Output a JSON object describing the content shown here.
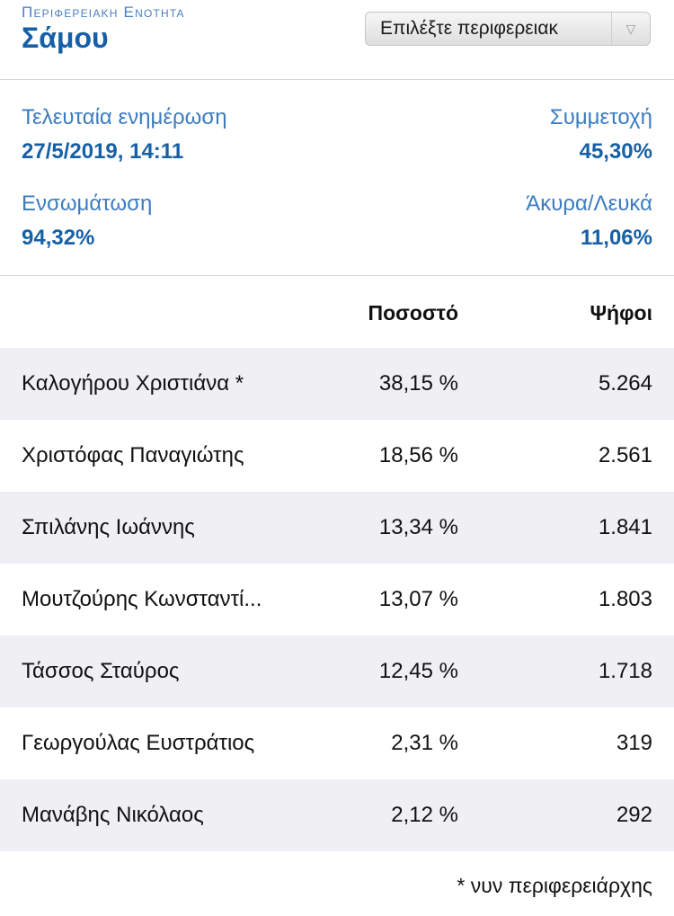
{
  "header": {
    "kicker": "Περιφερειακη Ενοτητα",
    "title": "Σάμου",
    "select_label": "Επιλέξτε περιφερειακ"
  },
  "stats": {
    "last_update_label": "Τελευταία ενημέρωση",
    "last_update_value": "27/5/2019, 14:11",
    "turnout_label": "Συμμετοχή",
    "turnout_value": "45,30%",
    "integration_label": "Ενσωμάτωση",
    "integration_value": "94,32%",
    "invalid_label": "Άκυρα/Λευκά",
    "invalid_value": "11,06%"
  },
  "table": {
    "headers": {
      "percent": "Ποσοστό",
      "votes": "Ψήφοι"
    },
    "rows": [
      {
        "name": "Καλογήρου Χριστιάνα *",
        "percent": "38,15 %",
        "votes": "5.264"
      },
      {
        "name": "Χριστόφας Παναγιώτης",
        "percent": "18,56 %",
        "votes": "2.561"
      },
      {
        "name": "Σπιλάνης Ιωάννης",
        "percent": "13,34 %",
        "votes": "1.841"
      },
      {
        "name": "Μουτζούρης Κωνσταντί...",
        "percent": "13,07 %",
        "votes": "1.803"
      },
      {
        "name": "Τάσσος Σταύρος",
        "percent": "12,45 %",
        "votes": "1.718"
      },
      {
        "name": "Γεωργούλας Ευστράτιος",
        "percent": "2,31 %",
        "votes": "319"
      },
      {
        "name": "Μανάβης Νικόλαος",
        "percent": "2,12 %",
        "votes": "292"
      }
    ]
  },
  "footnote": "* νυν περιφερειάρχης",
  "colors": {
    "accent": "#1560a6",
    "label_blue": "#3b7cc2",
    "row_shade": "#efeff4"
  },
  "icons": {
    "select_arrow": "chevron-down-icon"
  }
}
